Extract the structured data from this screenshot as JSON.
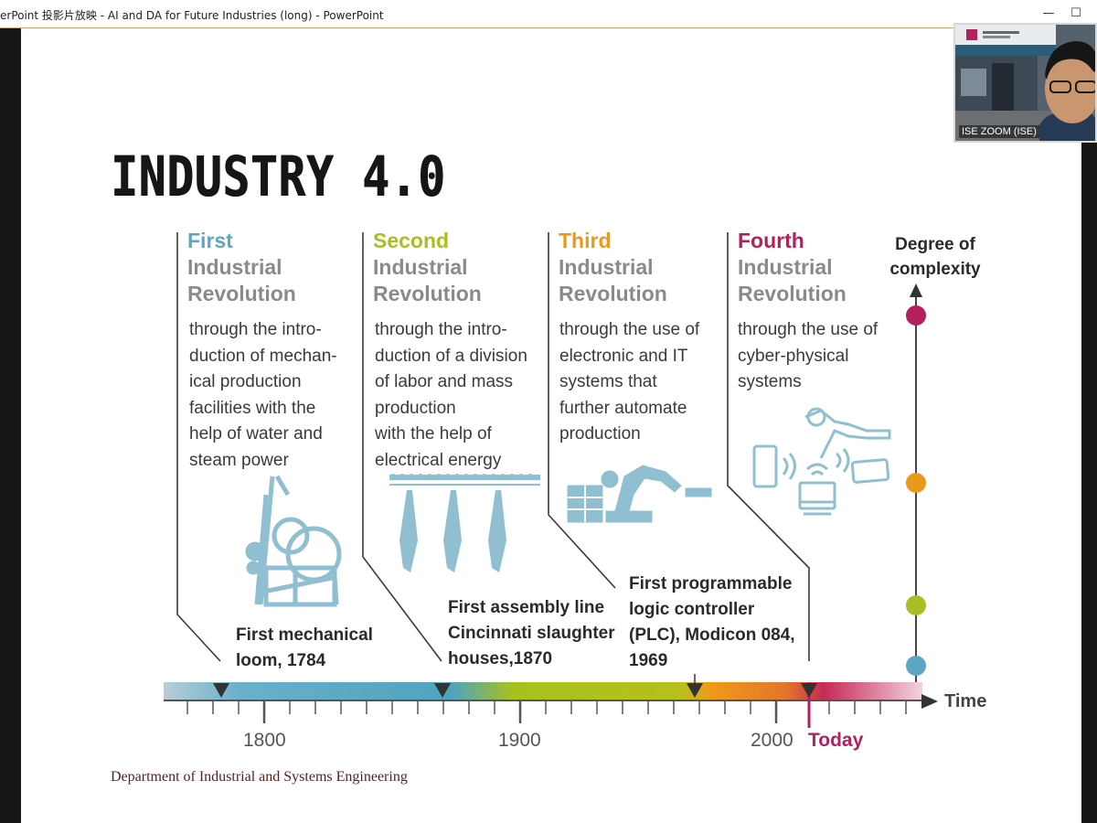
{
  "window": {
    "title": "erPoint 投影片放映  -  AI and DA for Future Industries (long) - PowerPoint",
    "minimize_icon": "minimize-icon",
    "maximize_icon": "maximize-icon"
  },
  "slide": {
    "heading": "INDUSTRY 4.0",
    "revolutions": [
      {
        "ordinal": "First",
        "name": "Industrial\nRevolution",
        "color": "#5ea7c2",
        "description": "through the intro-\nduction of mechan-\nical production\nfacilities with the\nhelp of water and\nsteam power"
      },
      {
        "ordinal": "Second",
        "name": "Industrial\nRevolution",
        "color": "#a8be22",
        "description": "through the intro-\nduction of a division\nof labor and mass\nproduction\nwith the help of\nelectrical energy"
      },
      {
        "ordinal": "Third",
        "name": "Industrial\nRevolution",
        "color": "#e89a1c",
        "description": "through the use of\nelectronic and IT\nsystems that\nfurther automate\nproduction"
      },
      {
        "ordinal": "Fourth",
        "name": "Industrial\nRevolution",
        "color": "#b51f5b",
        "description": "through the use of\ncyber-physical\nsystems"
      }
    ],
    "milestones": [
      {
        "text": "First mechanical\nloom, 1784"
      },
      {
        "text": "First assembly line\nCincinnati slaughter\nhouses,1870"
      },
      {
        "text": "First programmable\nlogic controller\n(PLC), Modicon 084,\n1969"
      }
    ],
    "complexity_label": "Degree of\ncomplexity",
    "time_label": "Time",
    "axis_labels": [
      "1800",
      "1900",
      "2000"
    ],
    "today_label": "Today",
    "footer": "Department of Industrial and Systems Engineering"
  },
  "webcam": {
    "name": "ISE ZOOM (ISE)"
  }
}
